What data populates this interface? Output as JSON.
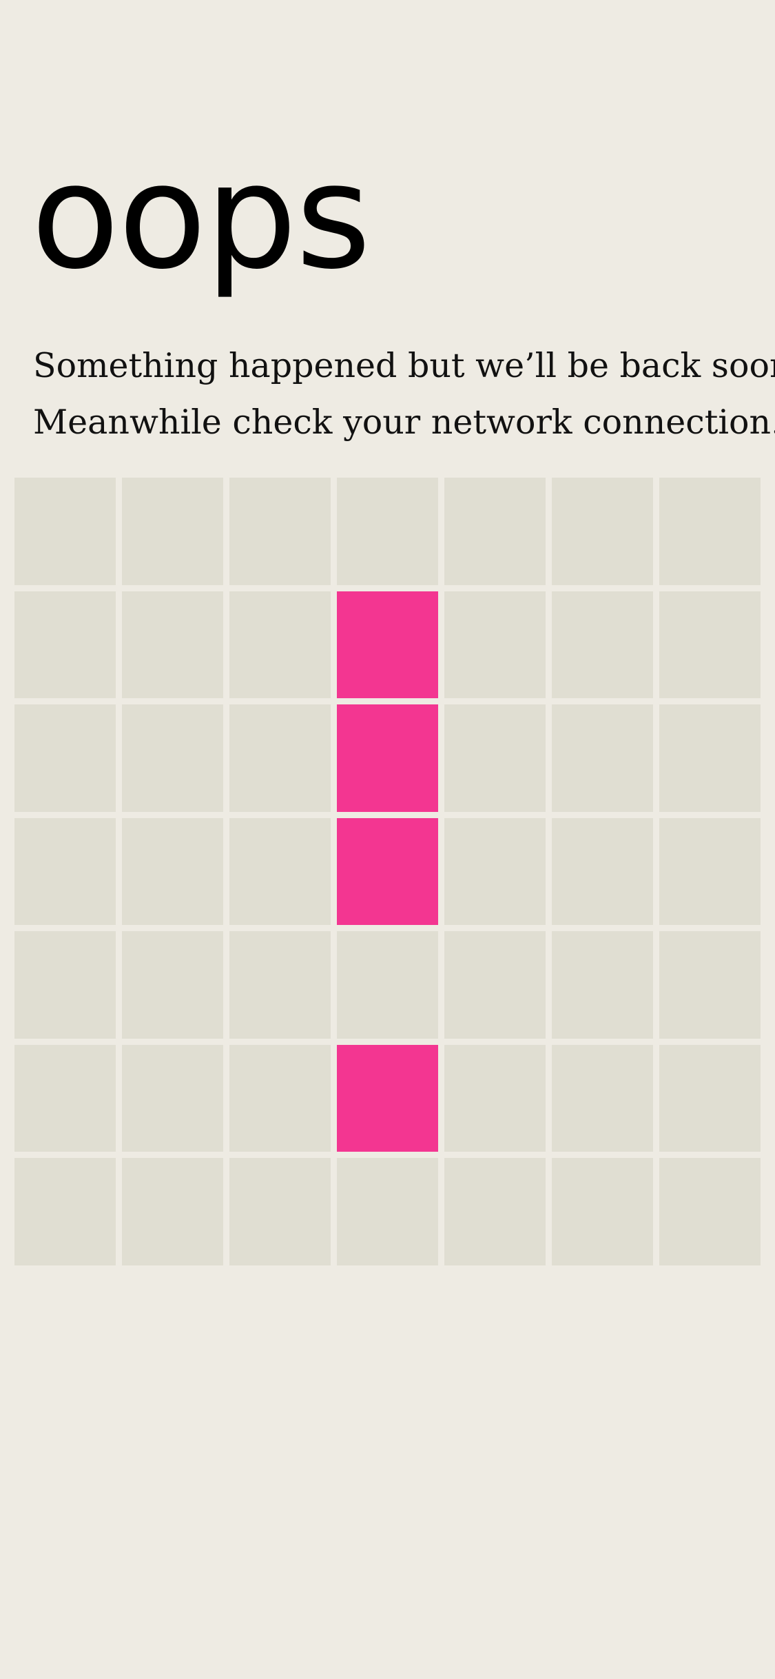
{
  "error_page": {
    "title": "oops",
    "message_line_1": "Something happened but we’ll be back soon.",
    "message_line_2": "Meanwhile check your network connection."
  },
  "grid": {
    "columns": 7,
    "rows": 7,
    "active_cells": [
      [
        1,
        3
      ],
      [
        2,
        3
      ],
      [
        3,
        3
      ],
      [
        5,
        3
      ]
    ]
  },
  "colors": {
    "background": "#EEEBE3",
    "cell": "#E0DED2",
    "active_cell": "#F33691",
    "text": "#000000"
  },
  "icons": {
    "grid_graphic": "exclamation-mark-icon"
  }
}
